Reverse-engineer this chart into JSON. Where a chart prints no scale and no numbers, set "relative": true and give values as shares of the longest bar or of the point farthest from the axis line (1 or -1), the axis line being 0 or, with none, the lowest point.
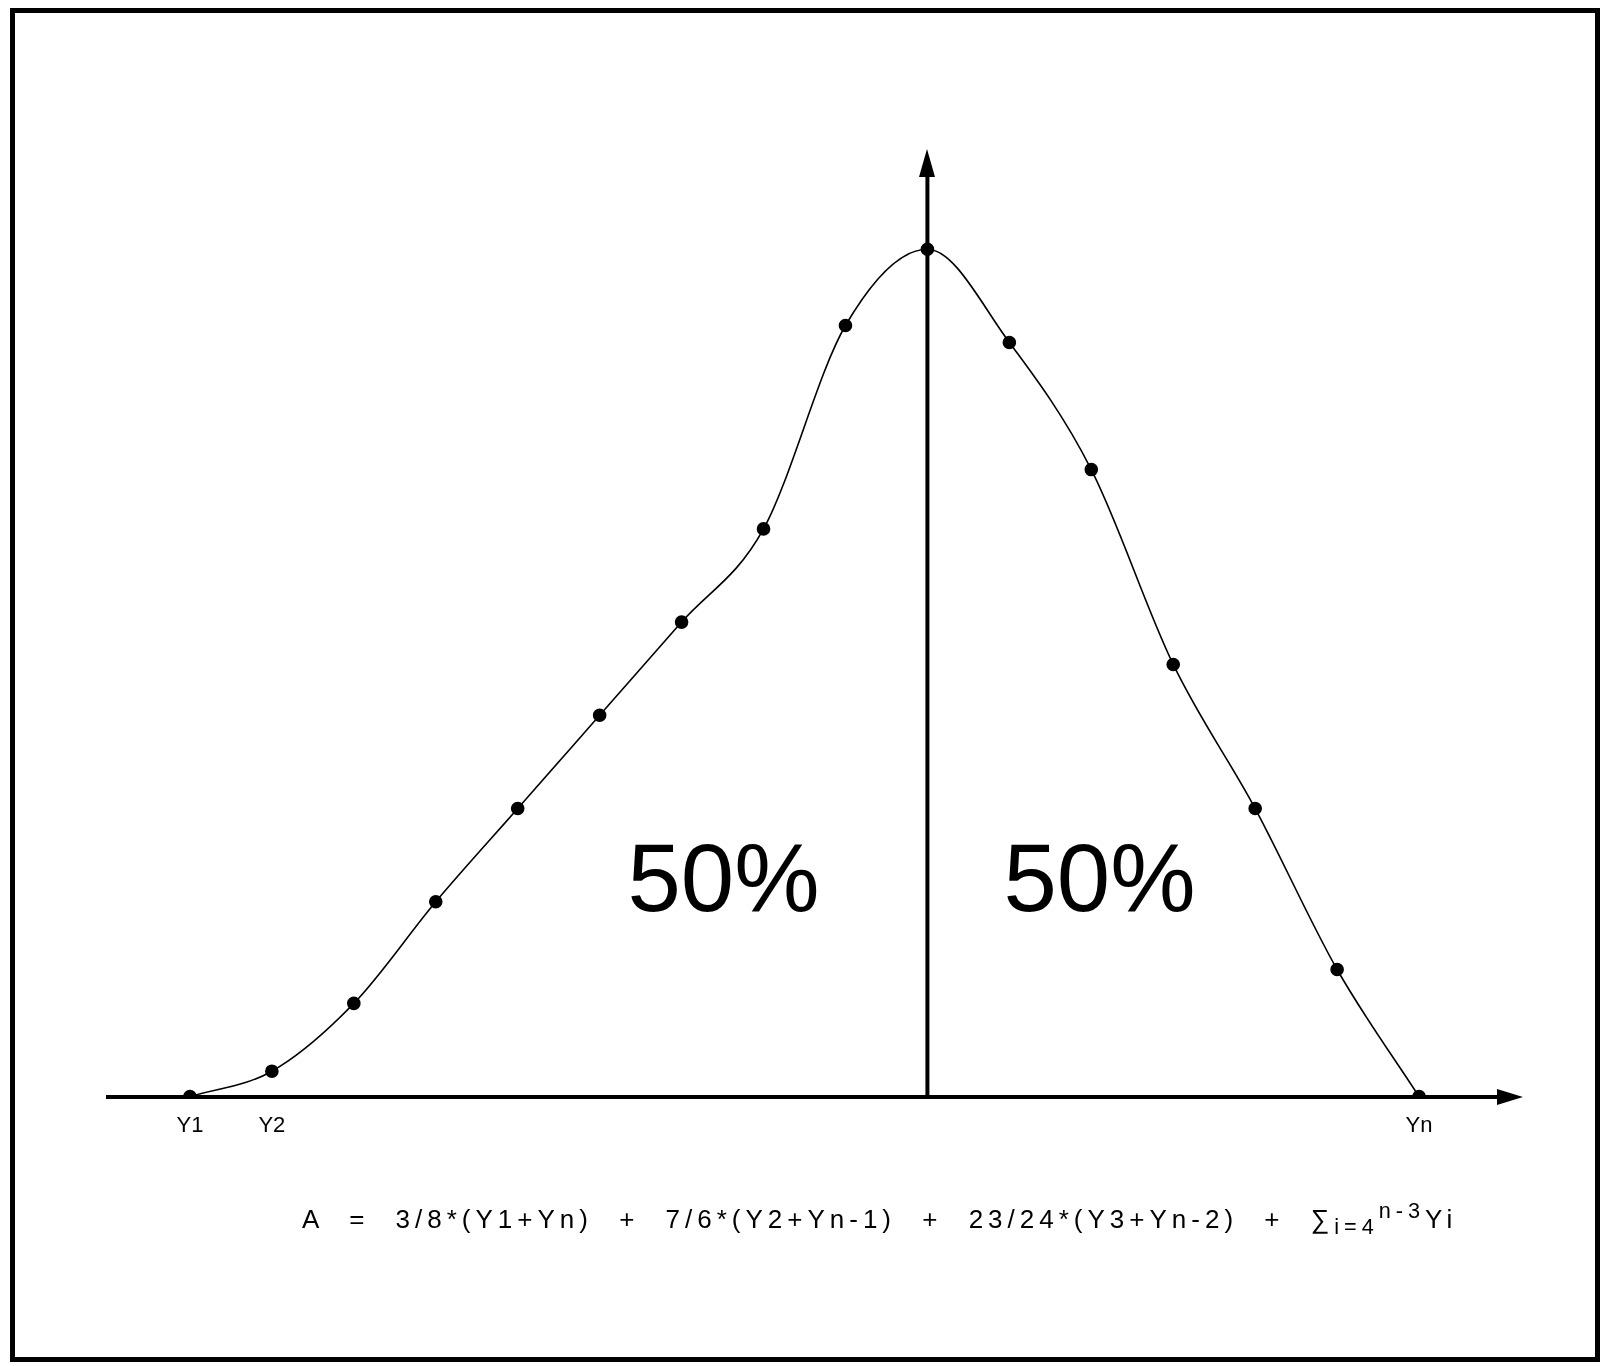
{
  "chart_data": {
    "type": "line",
    "categories": [
      "Y1",
      "Y2",
      null,
      null,
      null,
      null,
      null,
      null,
      null,
      null,
      null,
      null,
      null,
      null,
      null,
      "Yn"
    ],
    "values": [
      0,
      0.03,
      0.11,
      0.23,
      0.34,
      0.45,
      0.56,
      0.67,
      0.91,
      1,
      0.89,
      0.74,
      0.51,
      0.34,
      0.15,
      0
    ],
    "color": "#000000",
    "relative": true,
    "marker": "circle",
    "line_style": "solid",
    "annotations": [
      "50%",
      "50%",
      "A = 3/8*(Y1+Yn) + 7/6*(Y2+Yn-1) + 23/24*(Y3+Yn-2) + ∑$_{i=4}$$^{n-3}$Yi"
    ]
  }
}
